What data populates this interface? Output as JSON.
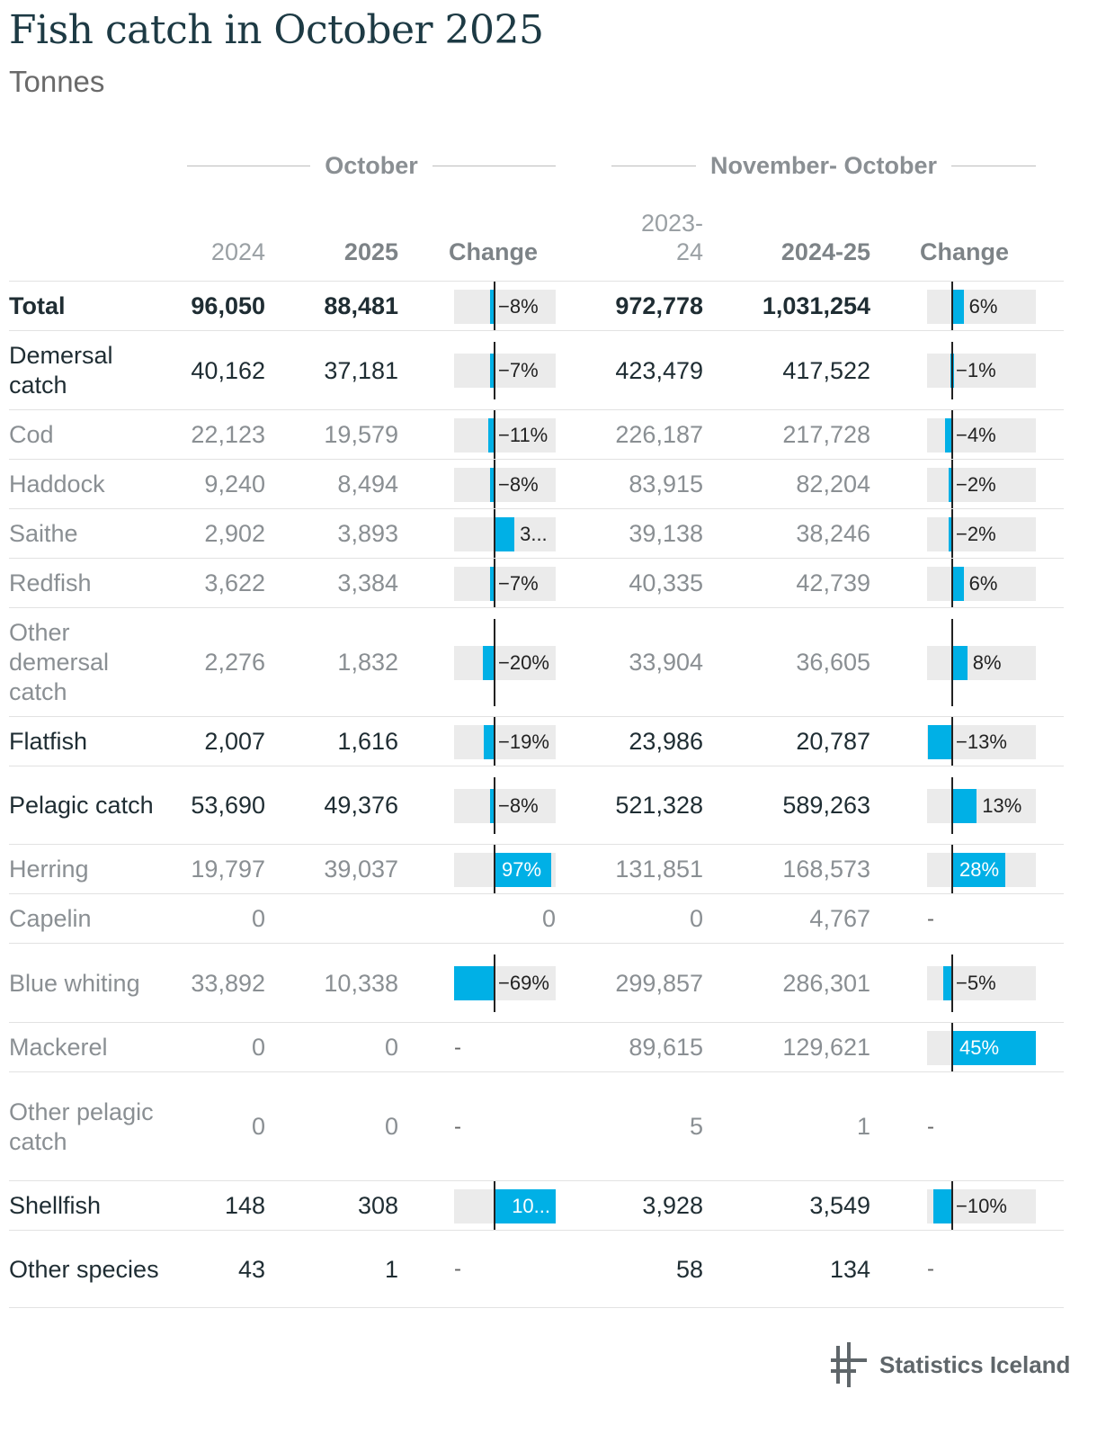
{
  "title": "Fish catch in October 2025",
  "subtitle": "Tonnes",
  "groups": {
    "october": "October",
    "novoct": "November- October"
  },
  "headers": {
    "y2024": "2024",
    "y2025": "2025",
    "change1": "Change",
    "y2324": "2023-\n24",
    "y2425": "2024-25",
    "change2": "Change"
  },
  "brand": "Statistics Iceland",
  "colors": {
    "bar": "#00b0e6",
    "bg": "#ebebeb",
    "dark": "#1f2d33",
    "muted": "#8a8f93"
  },
  "chart_data": {
    "type": "table",
    "title": "Fish catch in October 2025",
    "unit": "Tonnes",
    "columns": [
      "2024",
      "2025",
      "Change",
      "2023-24",
      "2024-25",
      "Change"
    ],
    "rows": [
      {
        "name": "Total",
        "style": "bold",
        "v2024": "96,050",
        "v2025": "88,481",
        "c1": -8,
        "c1_label": "−8%",
        "v2324": "972,778",
        "v2425": "1,031,254",
        "c2": 6,
        "c2_label": "6%"
      },
      {
        "name": "Demersal catch",
        "style": "dark",
        "v2024": "40,162",
        "v2025": "37,181",
        "c1": -7,
        "c1_label": "−7%",
        "v2324": "423,479",
        "v2425": "417,522",
        "c2": -1,
        "c2_label": "−1%"
      },
      {
        "name": "Cod",
        "style": "muted",
        "v2024": "22,123",
        "v2025": "19,579",
        "c1": -11,
        "c1_label": "−11%",
        "v2324": "226,187",
        "v2425": "217,728",
        "c2": -4,
        "c2_label": "−4%"
      },
      {
        "name": "Haddock",
        "style": "muted",
        "v2024": "9,240",
        "v2025": "8,494",
        "c1": -8,
        "c1_label": "−8%",
        "v2324": "83,915",
        "v2425": "82,204",
        "c2": -2,
        "c2_label": "−2%"
      },
      {
        "name": "Saithe",
        "style": "muted",
        "v2024": "2,902",
        "v2025": "3,893",
        "c1": 34,
        "c1_label": "3...",
        "v2324": "39,138",
        "v2425": "38,246",
        "c2": -2,
        "c2_label": "−2%"
      },
      {
        "name": "Redfish",
        "style": "muted",
        "v2024": "3,622",
        "v2025": "3,384",
        "c1": -7,
        "c1_label": "−7%",
        "v2324": "40,335",
        "v2425": "42,739",
        "c2": 6,
        "c2_label": "6%"
      },
      {
        "name": "Other demersal catch",
        "style": "muted",
        "v2024": "2,276",
        "v2025": "1,832",
        "c1": -20,
        "c1_label": "−20%",
        "v2324": "33,904",
        "v2425": "36,605",
        "c2": 8,
        "c2_label": "8%"
      },
      {
        "name": "Flatfish",
        "style": "dark",
        "v2024": "2,007",
        "v2025": "1,616",
        "c1": -19,
        "c1_label": "−19%",
        "v2324": "23,986",
        "v2425": "20,787",
        "c2": -13,
        "c2_label": "−13%"
      },
      {
        "name": "Pelagic catch",
        "style": "dark",
        "v2024": "53,690",
        "v2025": "49,376",
        "c1": -8,
        "c1_label": "−8%",
        "v2324": "521,328",
        "v2425": "589,263",
        "c2": 13,
        "c2_label": "13%"
      },
      {
        "name": "Herring",
        "style": "muted",
        "v2024": "19,797",
        "v2025": "39,037",
        "c1": 97,
        "c1_label": "97%",
        "v2324": "131,851",
        "v2425": "168,573",
        "c2": 28,
        "c2_label": "28%"
      },
      {
        "name": "Capelin",
        "style": "muted",
        "v2024": "0",
        "v2025": "",
        "c1": null,
        "c1_label": "0",
        "v2324": "0",
        "v2425": "4,767",
        "c2": null,
        "c2_label": "-"
      },
      {
        "name": "Blue whiting",
        "style": "muted",
        "v2024": "33,892",
        "v2025": "10,338",
        "c1": -69,
        "c1_label": "−69%",
        "v2324": "299,857",
        "v2425": "286,301",
        "c2": -5,
        "c2_label": "−5%"
      },
      {
        "name": "Mackerel",
        "style": "muted",
        "v2024": "0",
        "v2025": "0",
        "c1": null,
        "c1_label": "-",
        "v2324": "89,615",
        "v2425": "129,621",
        "c2": 45,
        "c2_label": "45%"
      },
      {
        "name": "Other pelagic catch",
        "style": "muted",
        "v2024": "0",
        "v2025": "0",
        "c1": null,
        "c1_label": "-",
        "v2324": "5",
        "v2425": "1",
        "c2": null,
        "c2_label": "-"
      },
      {
        "name": "Shellfish",
        "style": "dark",
        "v2024": "148",
        "v2025": "308",
        "c1": 108,
        "c1_label": "10...",
        "v2324": "3,928",
        "v2425": "3,549",
        "c2": -10,
        "c2_label": "−10%"
      },
      {
        "name": "Other species",
        "style": "dark",
        "v2024": "43",
        "v2025": "1",
        "c1": null,
        "c1_label": "-",
        "v2324": "58",
        "v2425": "134",
        "c2": null,
        "c2_label": "-"
      }
    ]
  }
}
